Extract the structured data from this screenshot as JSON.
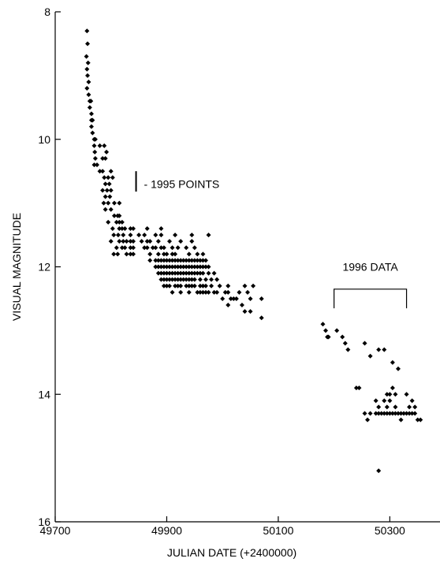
{
  "chart_data": {
    "type": "scatter",
    "title": "",
    "xlabel": "JULIAN DATE (+2400000)",
    "ylabel": "VISUAL MAGNITUDE",
    "xlim": [
      49700,
      50390
    ],
    "ylim": [
      16,
      8
    ],
    "y_inverted": true,
    "x_ticks": [
      49700,
      49900,
      50100,
      50300
    ],
    "y_ticks": [
      8,
      10,
      12,
      14,
      16
    ],
    "grid": false,
    "legend": "none",
    "marker_color": "#000000",
    "annotations": [
      {
        "text": "- 1995 POINTS"
      },
      {
        "text": "1996 DATA"
      }
    ],
    "series": [
      {
        "points": [
          [
            49757,
            8.3
          ],
          [
            49758,
            8.5
          ],
          [
            49756,
            8.7
          ],
          [
            49759,
            8.8
          ],
          [
            49757,
            8.9
          ],
          [
            49758,
            9.0
          ],
          [
            49760,
            9.1
          ],
          [
            49757,
            9.2
          ],
          [
            49760,
            9.3
          ],
          [
            49762,
            9.4
          ],
          [
            49764,
            9.4
          ],
          [
            49762,
            9.5
          ],
          [
            49765,
            9.6
          ],
          [
            49765,
            9.7
          ],
          [
            49767,
            9.7
          ],
          [
            49765,
            9.8
          ],
          [
            49767,
            9.9
          ],
          [
            49770,
            10.0
          ],
          [
            49772,
            10.0
          ],
          [
            49770,
            10.1
          ],
          [
            49771,
            10.2
          ],
          [
            49772,
            10.3
          ],
          [
            49770,
            10.4
          ],
          [
            49775,
            10.4
          ],
          [
            49780,
            10.1
          ],
          [
            49788,
            10.1
          ],
          [
            49792,
            10.2
          ],
          [
            49785,
            10.3
          ],
          [
            49790,
            10.3
          ],
          [
            49780,
            10.5
          ],
          [
            49785,
            10.5
          ],
          [
            49800,
            10.5
          ],
          [
            49788,
            10.6
          ],
          [
            49795,
            10.6
          ],
          [
            49803,
            10.6
          ],
          [
            49790,
            10.7
          ],
          [
            49797,
            10.7
          ],
          [
            49785,
            10.8
          ],
          [
            49793,
            10.8
          ],
          [
            49800,
            10.8
          ],
          [
            49790,
            10.9
          ],
          [
            49798,
            10.9
          ],
          [
            49787,
            11.0
          ],
          [
            49795,
            11.0
          ],
          [
            49790,
            11.1
          ],
          [
            49800,
            11.1
          ],
          [
            49806,
            11.0
          ],
          [
            49815,
            11.0
          ],
          [
            49806,
            11.2
          ],
          [
            49812,
            11.2
          ],
          [
            49795,
            11.3
          ],
          [
            49810,
            11.3
          ],
          [
            49803,
            11.4
          ],
          [
            49815,
            11.4
          ],
          [
            49805,
            11.5
          ],
          [
            49813,
            11.5
          ],
          [
            49822,
            11.5
          ],
          [
            49800,
            11.6
          ],
          [
            49815,
            11.6
          ],
          [
            49810,
            11.7
          ],
          [
            49820,
            11.7
          ],
          [
            49805,
            11.8
          ],
          [
            49812,
            11.8
          ],
          [
            49828,
            11.8
          ],
          [
            49815,
            11.2
          ],
          [
            49815,
            11.3
          ],
          [
            49820,
            11.3
          ],
          [
            49820,
            11.4
          ],
          [
            49825,
            11.4
          ],
          [
            49822,
            11.6
          ],
          [
            49828,
            11.6
          ],
          [
            49825,
            11.7
          ],
          [
            49835,
            11.4
          ],
          [
            49835,
            11.5
          ],
          [
            49835,
            11.6
          ],
          [
            49835,
            11.7
          ],
          [
            49835,
            11.8
          ],
          [
            49840,
            11.6
          ],
          [
            49840,
            11.7
          ],
          [
            49840,
            11.8
          ],
          [
            49850,
            11.5
          ],
          [
            49855,
            11.6
          ],
          [
            49860,
            11.5
          ],
          [
            49860,
            11.7
          ],
          [
            49865,
            11.6
          ],
          [
            49865,
            11.7
          ],
          [
            49870,
            11.6
          ],
          [
            49870,
            11.8
          ],
          [
            49875,
            11.7
          ],
          [
            49880,
            11.5
          ],
          [
            49880,
            11.7
          ],
          [
            49885,
            11.6
          ],
          [
            49885,
            11.8
          ],
          [
            49890,
            11.5
          ],
          [
            49890,
            11.7
          ],
          [
            49895,
            11.7
          ],
          [
            49895,
            11.8
          ],
          [
            49900,
            11.8
          ],
          [
            49905,
            11.6
          ],
          [
            49910,
            11.7
          ],
          [
            49915,
            11.8
          ],
          [
            49910,
            11.8
          ],
          [
            49920,
            11.7
          ],
          [
            49925,
            11.6
          ],
          [
            49925,
            11.9
          ],
          [
            49935,
            11.7
          ],
          [
            49940,
            11.8
          ],
          [
            49945,
            11.6
          ],
          [
            49945,
            11.9
          ],
          [
            49950,
            11.7
          ],
          [
            49955,
            11.8
          ],
          [
            49960,
            11.9
          ],
          [
            49965,
            11.8
          ],
          [
            49970,
            11.9
          ],
          [
            49840,
            11.4
          ],
          [
            49865,
            11.4
          ],
          [
            49890,
            11.4
          ],
          [
            49915,
            11.5
          ],
          [
            49945,
            11.5
          ],
          [
            49975,
            11.5
          ],
          [
            49870,
            11.9
          ],
          [
            49880,
            11.9
          ],
          [
            49885,
            11.9
          ],
          [
            49890,
            11.9
          ],
          [
            49895,
            11.9
          ],
          [
            49900,
            11.9
          ],
          [
            49905,
            11.9
          ],
          [
            49910,
            11.9
          ],
          [
            49915,
            11.9
          ],
          [
            49920,
            11.9
          ],
          [
            49930,
            11.9
          ],
          [
            49935,
            11.9
          ],
          [
            49940,
            11.9
          ],
          [
            49950,
            11.9
          ],
          [
            49955,
            11.9
          ],
          [
            49965,
            11.9
          ],
          [
            49880,
            12.0
          ],
          [
            49885,
            12.0
          ],
          [
            49890,
            12.0
          ],
          [
            49895,
            12.0
          ],
          [
            49900,
            12.0
          ],
          [
            49905,
            12.0
          ],
          [
            49910,
            12.0
          ],
          [
            49915,
            12.0
          ],
          [
            49920,
            12.0
          ],
          [
            49925,
            12.0
          ],
          [
            49930,
            12.0
          ],
          [
            49935,
            12.0
          ],
          [
            49940,
            12.0
          ],
          [
            49945,
            12.0
          ],
          [
            49950,
            12.0
          ],
          [
            49955,
            12.0
          ],
          [
            49960,
            12.0
          ],
          [
            49965,
            12.0
          ],
          [
            49970,
            12.0
          ],
          [
            49975,
            12.0
          ],
          [
            49885,
            12.1
          ],
          [
            49890,
            12.1
          ],
          [
            49895,
            12.1
          ],
          [
            49900,
            12.1
          ],
          [
            49905,
            12.1
          ],
          [
            49910,
            12.1
          ],
          [
            49915,
            12.1
          ],
          [
            49920,
            12.1
          ],
          [
            49925,
            12.1
          ],
          [
            49930,
            12.1
          ],
          [
            49935,
            12.1
          ],
          [
            49940,
            12.1
          ],
          [
            49945,
            12.1
          ],
          [
            49950,
            12.1
          ],
          [
            49955,
            12.1
          ],
          [
            49960,
            12.1
          ],
          [
            49965,
            12.1
          ],
          [
            49975,
            12.1
          ],
          [
            49985,
            12.1
          ],
          [
            49890,
            12.2
          ],
          [
            49895,
            12.2
          ],
          [
            49900,
            12.2
          ],
          [
            49905,
            12.2
          ],
          [
            49910,
            12.2
          ],
          [
            49915,
            12.2
          ],
          [
            49920,
            12.2
          ],
          [
            49925,
            12.2
          ],
          [
            49930,
            12.2
          ],
          [
            49935,
            12.2
          ],
          [
            49940,
            12.2
          ],
          [
            49945,
            12.2
          ],
          [
            49950,
            12.2
          ],
          [
            49960,
            12.2
          ],
          [
            49970,
            12.2
          ],
          [
            49980,
            12.2
          ],
          [
            49990,
            12.2
          ],
          [
            49895,
            12.3
          ],
          [
            49900,
            12.3
          ],
          [
            49905,
            12.3
          ],
          [
            49915,
            12.3
          ],
          [
            49920,
            12.3
          ],
          [
            49925,
            12.3
          ],
          [
            49935,
            12.3
          ],
          [
            49940,
            12.3
          ],
          [
            49945,
            12.3
          ],
          [
            49950,
            12.3
          ],
          [
            49960,
            12.3
          ],
          [
            49965,
            12.3
          ],
          [
            49970,
            12.3
          ],
          [
            49980,
            12.3
          ],
          [
            49995,
            12.3
          ],
          [
            49910,
            12.4
          ],
          [
            49925,
            12.4
          ],
          [
            49940,
            12.4
          ],
          [
            49955,
            12.4
          ],
          [
            49960,
            12.4
          ],
          [
            49965,
            12.4
          ],
          [
            49970,
            12.4
          ],
          [
            49975,
            12.4
          ],
          [
            49985,
            12.4
          ],
          [
            49990,
            12.4
          ],
          [
            50005,
            12.4
          ],
          [
            50010,
            12.4
          ],
          [
            50030,
            12.4
          ],
          [
            50045,
            12.4
          ],
          [
            50010,
            12.3
          ],
          [
            50040,
            12.3
          ],
          [
            50055,
            12.3
          ],
          [
            50000,
            12.5
          ],
          [
            50015,
            12.5
          ],
          [
            50020,
            12.5
          ],
          [
            50025,
            12.5
          ],
          [
            50050,
            12.5
          ],
          [
            50070,
            12.5
          ],
          [
            50035,
            12.6
          ],
          [
            50010,
            12.6
          ],
          [
            50040,
            12.7
          ],
          [
            50050,
            12.7
          ],
          [
            50070,
            12.8
          ],
          [
            50180,
            12.9
          ],
          [
            50185,
            13.0
          ],
          [
            50190,
            13.1
          ],
          [
            50188,
            13.1
          ],
          [
            50205,
            13.0
          ],
          [
            50215,
            13.1
          ],
          [
            50220,
            13.2
          ],
          [
            50225,
            13.3
          ],
          [
            50255,
            13.2
          ],
          [
            50265,
            13.4
          ],
          [
            50280,
            13.3
          ],
          [
            50290,
            13.3
          ],
          [
            50305,
            13.5
          ],
          [
            50315,
            13.6
          ],
          [
            50240,
            13.9
          ],
          [
            50245,
            13.9
          ],
          [
            50305,
            13.9
          ],
          [
            50295,
            14.0
          ],
          [
            50300,
            14.0
          ],
          [
            50310,
            14.0
          ],
          [
            50330,
            14.0
          ],
          [
            50275,
            14.1
          ],
          [
            50290,
            14.1
          ],
          [
            50300,
            14.1
          ],
          [
            50340,
            14.1
          ],
          [
            50280,
            14.2
          ],
          [
            50295,
            14.2
          ],
          [
            50310,
            14.2
          ],
          [
            50335,
            14.2
          ],
          [
            50345,
            14.2
          ],
          [
            50255,
            14.3
          ],
          [
            50265,
            14.3
          ],
          [
            50275,
            14.3
          ],
          [
            50280,
            14.3
          ],
          [
            50285,
            14.3
          ],
          [
            50290,
            14.3
          ],
          [
            50295,
            14.3
          ],
          [
            50300,
            14.3
          ],
          [
            50305,
            14.3
          ],
          [
            50310,
            14.3
          ],
          [
            50315,
            14.3
          ],
          [
            50320,
            14.3
          ],
          [
            50325,
            14.3
          ],
          [
            50330,
            14.3
          ],
          [
            50335,
            14.3
          ],
          [
            50340,
            14.3
          ],
          [
            50345,
            14.3
          ],
          [
            50260,
            14.4
          ],
          [
            50320,
            14.4
          ],
          [
            50350,
            14.4
          ],
          [
            50355,
            14.4
          ],
          [
            50280,
            15.2
          ]
        ]
      }
    ]
  }
}
